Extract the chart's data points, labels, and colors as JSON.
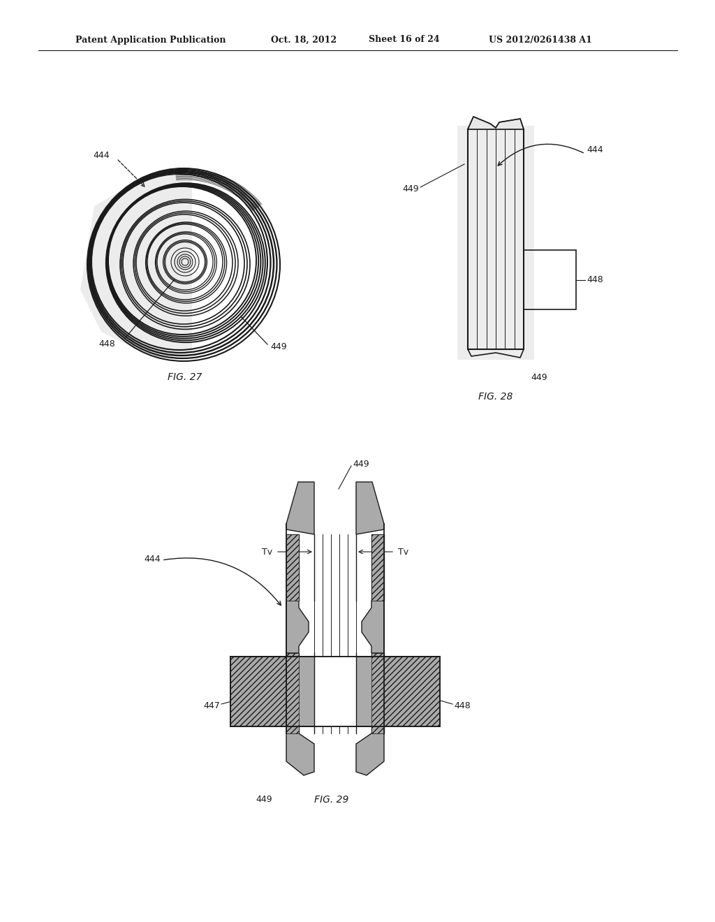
{
  "bg_color": "#ffffff",
  "line_color": "#1a1a1a",
  "gray_light": "#d8d8d8",
  "gray_mid": "#b0b0b0",
  "hatch_color": "#555555",
  "header_text": "Patent Application Publication",
  "header_date": "Oct. 18, 2012",
  "header_sheet": "Sheet 16 of 24",
  "header_patent": "US 2012/0261438 A1",
  "fig27_label": "FIG. 27",
  "fig28_label": "FIG. 28",
  "fig29_label": "FIG. 29",
  "label_444": "444",
  "label_448": "448",
  "label_449": "449",
  "label_447": "447",
  "label_Tv": "Tv"
}
